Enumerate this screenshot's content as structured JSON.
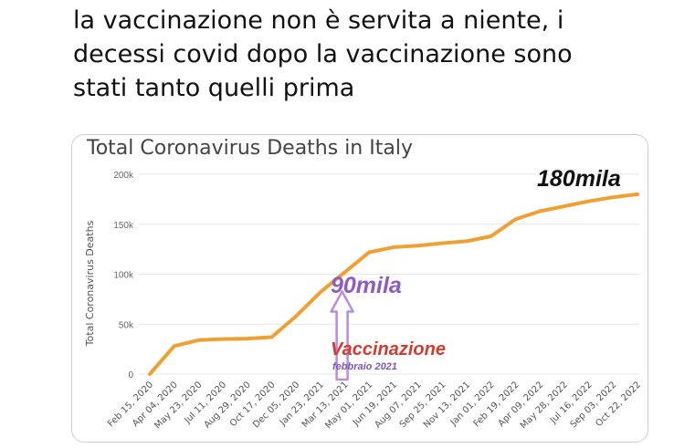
{
  "caption": {
    "lines": [
      "la vaccinazione non è servita a niente, i",
      "decessi covid dopo la vaccinazione sono",
      "stati tanto quelli prima"
    ]
  },
  "colors": {
    "line": "#f0a030",
    "arrow": "#b98cdc",
    "annotation_180": "#111111",
    "annotation_90": "#8d5bc2",
    "annotation_vacc": "#d23c2e",
    "annotation_feb": "#7e57b5"
  },
  "annotations": {
    "total_label": "180mila",
    "vaccination_value_label": "90mila",
    "vaccination_label": "Vaccinazione",
    "vaccination_date": "febbraio 2021"
  },
  "chart_data": {
    "type": "line",
    "title": "Total Coronavirus Deaths in Italy",
    "xlabel": "",
    "ylabel": "Total Coronavirus Deaths",
    "ylim": [
      0,
      200000
    ],
    "yticks": [
      0,
      50000,
      100000,
      150000,
      200000
    ],
    "ytick_labels": [
      "0",
      "50k",
      "100k",
      "150k",
      "200k"
    ],
    "grid": "horizontal",
    "categories": [
      "Feb 15, 2020",
      "Apr 04, 2020",
      "May 23, 2020",
      "Jul 11, 2020",
      "Aug 29, 2020",
      "Oct 17, 2020",
      "Dec 05, 2020",
      "Jan 23, 2021",
      "Mar 13, 2021",
      "May 01, 2021",
      "Jun 19, 2021",
      "Aug 07, 2021",
      "Sep 25, 2021",
      "Nov 13, 2021",
      "Jan 01, 2022",
      "Feb 19, 2022",
      "Apr 09, 2022",
      "May 28, 2022",
      "Jul 16, 2022",
      "Sep 03, 2022",
      "Oct 22, 2022"
    ],
    "series": [
      {
        "values": [
          0,
          28000,
          34000,
          35000,
          35500,
          37000,
          58000,
          82000,
          102000,
          122000,
          127000,
          128500,
          131000,
          133000,
          138000,
          155000,
          163000,
          168000,
          173000,
          177000,
          180000
        ]
      }
    ],
    "vaccination_marker": {
      "x": "Mar 13, 2021",
      "value": 90000
    }
  }
}
